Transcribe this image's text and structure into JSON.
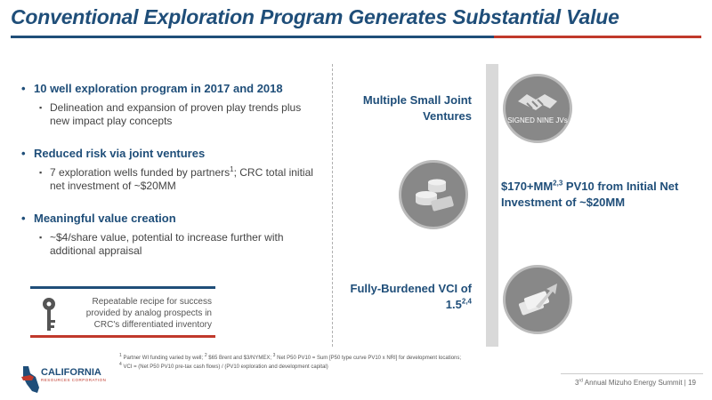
{
  "title": "Conventional Exploration Program Generates Substantial Value",
  "bullets": [
    {
      "heading": "10 well exploration program in 2017 and 2018",
      "sub": "Delineation and expansion of proven play trends plus new impact play concepts"
    },
    {
      "heading": "Reduced risk via joint ventures",
      "sub_pre": "7 exploration wells funded by partners",
      "sub_sup": "1",
      "sub_post": "; CRC total initial net investment of ~$20MM"
    },
    {
      "heading": "Meaningful value creation",
      "sub": "~$4/share value, potential to increase further with additional appraisal"
    }
  ],
  "callout": "Repeatable recipe for success provided by analog prospects in CRC's differentiated inventory",
  "right": {
    "item1": "Multiple Small Joint Ventures",
    "item1_icon_label": "SIGNED NINE JVs",
    "item2_main": "$170+MM",
    "item2_sup": "2,3",
    "item2_rest": " PV10 from Initial Net Investment of ~$20MM",
    "item3_main": "Fully-Burdened VCI of 1.5",
    "item3_sup": "2,4"
  },
  "footnotes": {
    "f1_sup": "1",
    "f1": " Partner WI funding varied by well; ",
    "f2_sup": "2",
    "f2": " $65 Brent and $3/NYMEX; ",
    "f3_sup": "3",
    "f3": " Net P50 PV10 = Sum [P50 type curve PV10 x NRI] for development locations;",
    "f4_sup": "4",
    "f4": " VCI = (Net P50 PV10 pre-tax cash flows) / (PV10 exploration and development capital)"
  },
  "logo": {
    "name": "CALIFORNIA",
    "sub": "RESOURCES CORPORATION"
  },
  "footer": {
    "event_pre": "3",
    "event_sup": "rd",
    "event_post": " Annual Mizuho Energy Summit",
    "page": "19"
  },
  "colors": {
    "navy": "#1f4e79",
    "red": "#c0392b",
    "circle": "#888888"
  }
}
